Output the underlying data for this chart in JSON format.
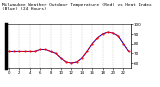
{
  "title": "Milwaukee Weather Outdoor Temperature (Red) vs Heat Index (Blue) (24 Hours)",
  "title_fontsize": 3.2,
  "hours": [
    0,
    1,
    2,
    3,
    4,
    5,
    6,
    7,
    8,
    9,
    10,
    11,
    12,
    13,
    14,
    15,
    16,
    17,
    18,
    19,
    20,
    21,
    22,
    23
  ],
  "temp": [
    72,
    72,
    72,
    72,
    72,
    72,
    74,
    74,
    72,
    70,
    65,
    61,
    60,
    61,
    65,
    72,
    80,
    86,
    90,
    92,
    91,
    88,
    80,
    72
  ],
  "heat_index": [
    72,
    72,
    72,
    72,
    72,
    72,
    74,
    74,
    72,
    70,
    65,
    61,
    60,
    61,
    65,
    72,
    80,
    86,
    90,
    92,
    91,
    88,
    80,
    72
  ],
  "ylim": [
    55,
    100
  ],
  "ytick_values": [
    60,
    70,
    80,
    90,
    100
  ],
  "ytick_labels": [
    "60",
    "70",
    "80",
    "90",
    "100"
  ],
  "ylabel_fontsize": 3.0,
  "xlabel_fontsize": 2.8,
  "temp_color": "#ff0000",
  "heat_index_color": "#0000cc",
  "bg_color": "#ffffff",
  "grid_color": "#aaaaaa",
  "left_bar_color": "#000000",
  "line_width": 0.7,
  "marker_size": 1.0,
  "xtick_step": 2
}
